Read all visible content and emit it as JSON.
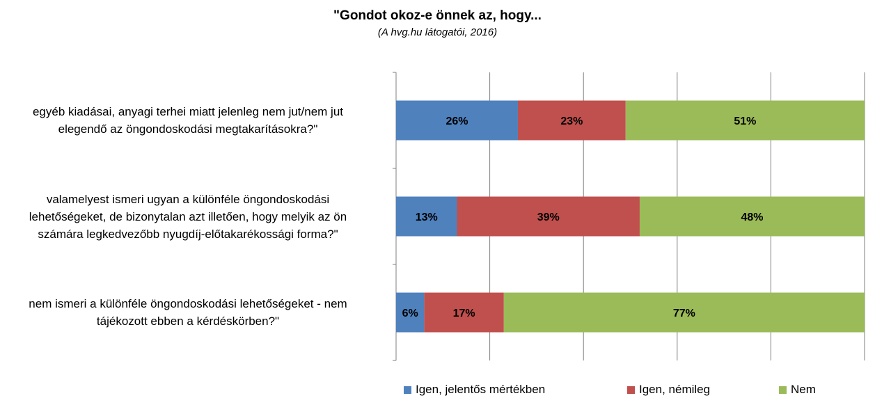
{
  "chart_data": {
    "type": "bar",
    "orientation": "horizontal",
    "stacked": true,
    "percent_stacked": true,
    "title": "\"Gondot okoz-e önnek az, hogy...",
    "subtitle": "(A hvg.hu látogatói, 2016)",
    "categories": [
      "egyéb kiadásai, anyagi terhei miatt jelenleg nem jut/nem jut elegendő az öngondoskodási megtakarításokra?\"",
      "valamelyest ismeri ugyan a különféle öngondoskodási lehetőségeket, de bizonytalan azt illetően, hogy melyik az ön számára legkedvezőbb nyugdíj-előtakarékossági forma?\"",
      "nem ismeri a különféle öngondoskodási lehetőségeket - nem tájékozott ebben a kérdéskörben?\""
    ],
    "category_lines": [
      [
        "egyéb kiadásai, anyagi terhei miatt jelenleg nem jut/nem jut",
        "elegendő az öngondoskodási megtakarításokra?\""
      ],
      [
        "valamelyest ismeri ugyan a különféle öngondoskodási",
        "lehetőségeket, de bizonytalan azt illetően, hogy melyik az ön",
        "számára legkedvezőbb nyugdíj-előtakarékossági forma?\""
      ],
      [
        "nem ismeri a különféle öngondoskodási lehetőségeket - nem",
        "tájékozott ebben a kérdéskörben?\""
      ]
    ],
    "series": [
      {
        "name": "Igen, jelentős mértékben",
        "color": "#4F81BD",
        "values": [
          26,
          13,
          6
        ],
        "labels": [
          "26%",
          "13%",
          "6%"
        ]
      },
      {
        "name": "Igen, némileg",
        "color": "#C0504D",
        "values": [
          23,
          39,
          17
        ],
        "labels": [
          "23%",
          "39%",
          "17%"
        ]
      },
      {
        "name": "Nem",
        "color": "#9BBB59",
        "values": [
          51,
          48,
          77
        ],
        "labels": [
          "51%",
          "48%",
          "77%"
        ]
      }
    ],
    "xlim": [
      0,
      100
    ],
    "grid": true,
    "legend_position": "bottom"
  }
}
